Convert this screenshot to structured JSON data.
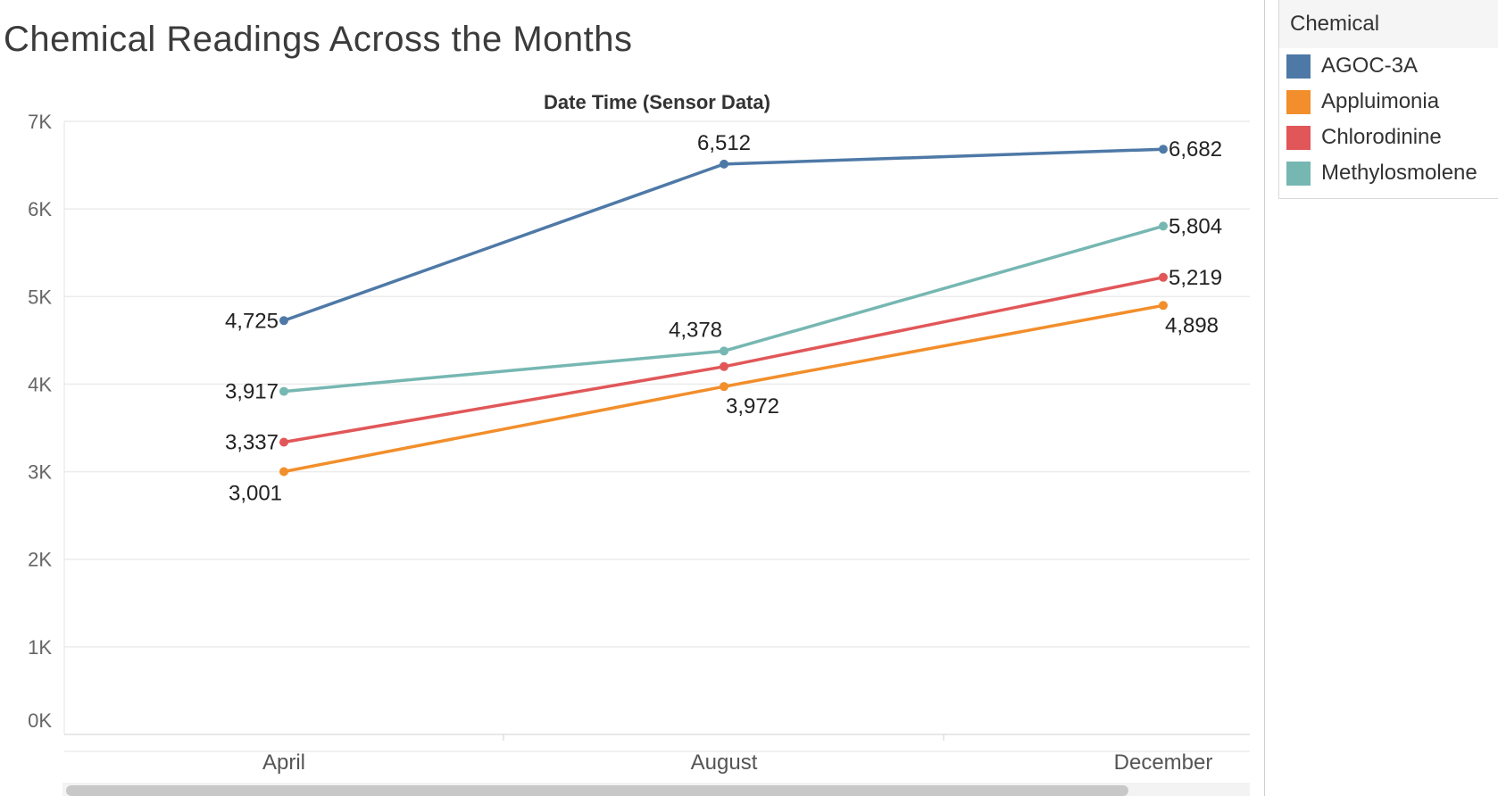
{
  "title": "Chemical Readings Across the Months",
  "legend": {
    "title": "Chemical",
    "items": [
      {
        "label": "AGOC-3A",
        "color": "#4e79a7"
      },
      {
        "label": "Appluimonia",
        "color": "#f28e2b"
      },
      {
        "label": "Chlorodinine",
        "color": "#e15759"
      },
      {
        "label": "Methylosmolene",
        "color": "#76b7b2"
      }
    ]
  },
  "chart_data": {
    "type": "line",
    "title": "Chemical Readings Across the Months",
    "xlabel": "Date Time (Sensor Data)",
    "ylabel": "",
    "categories": [
      "April",
      "August",
      "December"
    ],
    "ylim": [
      0,
      7000
    ],
    "yticks": [
      0,
      1000,
      2000,
      3000,
      4000,
      5000,
      6000,
      7000
    ],
    "ytick_labels": [
      "0K",
      "1K",
      "2K",
      "3K",
      "4K",
      "5K",
      "6K",
      "7K"
    ],
    "grid": true,
    "legend_position": "right",
    "series": [
      {
        "name": "AGOC-3A",
        "color": "#4e79a7",
        "values": [
          4725,
          6512,
          6682
        ],
        "labels": [
          "4,725",
          "6,512",
          "6,682"
        ]
      },
      {
        "name": "Appluimonia",
        "color": "#f28e2b",
        "values": [
          3001,
          3972,
          4898
        ],
        "labels": [
          "3,001",
          "3,972",
          "4,898"
        ]
      },
      {
        "name": "Chlorodinine",
        "color": "#e15759",
        "values": [
          3337,
          4200,
          5219
        ],
        "labels": [
          "3,337",
          "",
          "5,219"
        ]
      },
      {
        "name": "Methylosmolene",
        "color": "#76b7b2",
        "values": [
          3917,
          4378,
          5804
        ],
        "labels": [
          "3,917",
          "4,378",
          "5,804"
        ]
      }
    ]
  }
}
